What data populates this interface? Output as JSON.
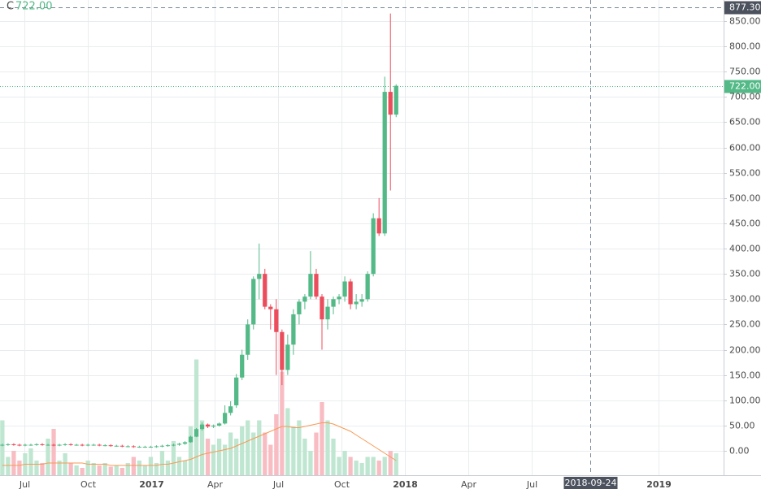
{
  "chart_data": {
    "type": "candlestick",
    "ohlc_label": "C",
    "last_price": {
      "value": 722,
      "label": "722.00"
    },
    "crosshair": {
      "price": {
        "value": 877.3,
        "label": "877.30"
      },
      "time": {
        "value": 32.77,
        "label": "2018-09-24"
      }
    },
    "grid": true,
    "up_color": "#53b987",
    "down_color": "#eb4d5c",
    "volume_up_color": "#bfe6d0",
    "volume_down_color": "#f8bcc3",
    "volume_ma_color": "#f79a55",
    "xlim": [
      4.85,
      39.08
    ],
    "ylim": [
      -48.2,
      891.7
    ],
    "volume_ylim": [
      0,
      100
    ],
    "xticks": [
      {
        "value": 6,
        "label": "Jul"
      },
      {
        "value": 9,
        "label": "Oct"
      },
      {
        "value": 12,
        "label": "2017"
      },
      {
        "value": 15,
        "label": "Apr"
      },
      {
        "value": 18,
        "label": "Jul"
      },
      {
        "value": 21,
        "label": "Oct"
      },
      {
        "value": 24,
        "label": "2018"
      },
      {
        "value": 27,
        "label": "Apr"
      },
      {
        "value": 30,
        "label": "Jul"
      },
      {
        "value": 36,
        "label": "2019"
      }
    ],
    "yticks": [
      {
        "value": 0,
        "label": "0.00"
      },
      {
        "value": 50,
        "label": "50.00"
      },
      {
        "value": 100,
        "label": "100.00"
      },
      {
        "value": 150,
        "label": "150.00"
      },
      {
        "value": 200,
        "label": "200.00"
      },
      {
        "value": 250,
        "label": "250.00"
      },
      {
        "value": 300,
        "label": "300.00"
      },
      {
        "value": 350,
        "label": "350.00"
      },
      {
        "value": 400,
        "label": "400.00"
      },
      {
        "value": 450,
        "label": "450.00"
      },
      {
        "value": 500,
        "label": "500.00"
      },
      {
        "value": 550,
        "label": "550.00"
      },
      {
        "value": 600,
        "label": "600.00"
      },
      {
        "value": 650,
        "label": "650.00"
      },
      {
        "value": 700,
        "label": "700.00"
      },
      {
        "value": 750,
        "label": "750.00"
      },
      {
        "value": 800,
        "label": "800.00"
      },
      {
        "value": 850,
        "label": "850.00"
      }
    ],
    "x": [
      4.96,
      5.23,
      5.5,
      5.77,
      6.04,
      6.31,
      6.58,
      6.85,
      7.12,
      7.39,
      7.66,
      7.93,
      8.2,
      8.47,
      8.74,
      9.01,
      9.28,
      9.55,
      9.82,
      10.09,
      10.36,
      10.63,
      10.9,
      11.17,
      11.44,
      11.71,
      11.98,
      12.25,
      12.52,
      12.79,
      13.06,
      13.33,
      13.6,
      13.87,
      14.14,
      14.41,
      14.68,
      14.95,
      15.22,
      15.49,
      15.76,
      16.03,
      16.3,
      16.57,
      16.84,
      17.11,
      17.38,
      17.65,
      17.92,
      18.19,
      18.46,
      18.73,
      19.0,
      19.27,
      19.54,
      19.81,
      20.08,
      20.35,
      20.62,
      20.89,
      21.16,
      21.43,
      21.7,
      21.97,
      22.24,
      22.51,
      22.78,
      23.05,
      23.32,
      23.59
    ],
    "open": [
      11,
      12,
      13,
      12,
      11,
      12,
      12,
      13,
      12,
      12,
      11,
      12,
      13,
      12,
      12,
      11,
      12,
      12,
      11,
      11,
      10,
      10,
      9,
      9,
      8,
      8,
      8,
      8,
      9,
      10,
      11,
      12,
      14,
      17,
      28,
      43,
      52,
      48,
      50,
      54,
      75,
      90,
      145,
      190,
      250,
      340,
      350,
      285,
      280,
      235,
      160,
      210,
      270,
      295,
      305,
      350,
      305,
      260,
      285,
      300,
      305,
      335,
      290,
      295,
      300,
      350,
      460,
      430,
      710,
      665
    ],
    "high": [
      14,
      15,
      15,
      14,
      14,
      14,
      15,
      15,
      14,
      14,
      14,
      15,
      15,
      14,
      14,
      14,
      14,
      14,
      13,
      13,
      12,
      12,
      11,
      11,
      10,
      10,
      10,
      11,
      12,
      13,
      14,
      16,
      19,
      30,
      45,
      56,
      54,
      52,
      56,
      90,
      98,
      152,
      200,
      260,
      345,
      410,
      360,
      290,
      300,
      240,
      230,
      280,
      300,
      310,
      395,
      360,
      310,
      300,
      305,
      310,
      345,
      340,
      310,
      310,
      355,
      470,
      500,
      740,
      865,
      725
    ],
    "low": [
      9,
      10,
      10,
      9,
      9,
      10,
      10,
      10,
      10,
      9,
      9,
      10,
      10,
      10,
      9,
      9,
      10,
      9,
      9,
      8,
      8,
      7,
      7,
      6,
      6,
      6,
      6,
      6,
      7,
      8,
      9,
      10,
      12,
      16,
      27,
      40,
      45,
      45,
      48,
      52,
      70,
      85,
      140,
      180,
      240,
      300,
      280,
      240,
      150,
      130,
      150,
      190,
      250,
      280,
      300,
      300,
      200,
      240,
      270,
      290,
      295,
      280,
      280,
      285,
      295,
      345,
      425,
      425,
      515,
      660
    ],
    "close": [
      12,
      13,
      12,
      11,
      12,
      12,
      13,
      12,
      12,
      11,
      12,
      13,
      12,
      12,
      11,
      12,
      12,
      11,
      11,
      10,
      10,
      9,
      9,
      8,
      8,
      8,
      8,
      9,
      10,
      11,
      12,
      14,
      17,
      28,
      43,
      52,
      48,
      50,
      54,
      75,
      88,
      145,
      190,
      250,
      340,
      350,
      285,
      280,
      235,
      160,
      210,
      270,
      295,
      305,
      350,
      305,
      260,
      285,
      300,
      305,
      335,
      290,
      295,
      300,
      350,
      460,
      430,
      710,
      665,
      722
    ],
    "volume": [
      45,
      15,
      20,
      12,
      18,
      22,
      12,
      10,
      30,
      38,
      12,
      18,
      10,
      8,
      6,
      12,
      10,
      8,
      10,
      7,
      8,
      6,
      10,
      15,
      12,
      8,
      15,
      10,
      20,
      12,
      28,
      15,
      12,
      40,
      95,
      45,
      30,
      25,
      30,
      25,
      35,
      30,
      40,
      45,
      35,
      45,
      35,
      25,
      50,
      85,
      55,
      40,
      45,
      30,
      20,
      35,
      60,
      45,
      30,
      15,
      20,
      15,
      12,
      10,
      15,
      15,
      12,
      15,
      20,
      18
    ],
    "volume_ma": [
      8,
      8,
      8,
      8,
      9,
      9,
      9,
      9,
      10,
      10,
      10,
      10,
      10,
      10,
      10,
      9,
      9,
      9,
      9,
      8,
      8,
      8,
      8,
      8,
      8,
      8,
      8,
      8,
      9,
      9,
      10,
      11,
      12,
      13,
      15,
      17,
      18,
      19,
      20,
      21,
      22,
      24,
      26,
      28,
      30,
      32,
      34,
      36,
      38,
      40,
      40,
      39,
      39,
      40,
      41,
      42,
      43,
      43,
      42,
      40,
      38,
      36,
      33,
      30,
      27,
      24,
      21,
      18,
      15,
      12
    ]
  }
}
